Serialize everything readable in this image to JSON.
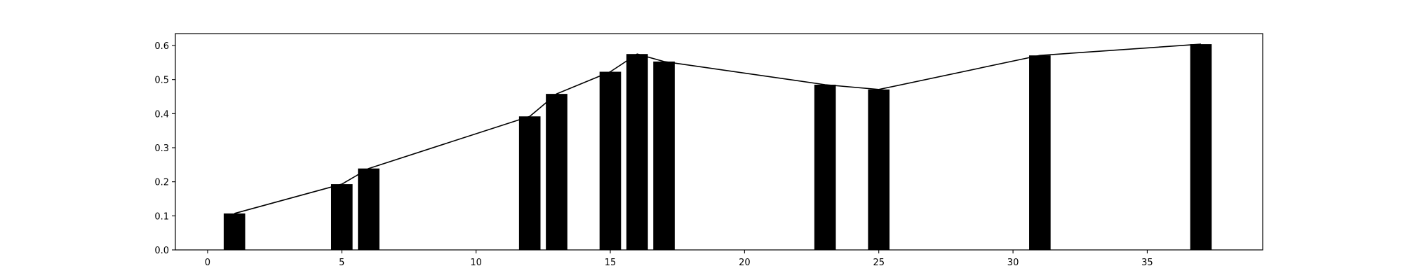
{
  "chart_data": {
    "type": "bar",
    "title": "",
    "xlabel": "",
    "ylabel": "",
    "x": [
      1,
      5,
      6,
      12,
      13,
      15,
      16,
      17,
      23,
      25,
      31,
      37
    ],
    "values": [
      0.107,
      0.193,
      0.239,
      0.392,
      0.458,
      0.523,
      0.575,
      0.553,
      0.485,
      0.471,
      0.571,
      0.604
    ],
    "line_values": [
      0.107,
      0.193,
      0.239,
      0.392,
      0.458,
      0.523,
      0.575,
      0.553,
      0.485,
      0.471,
      0.571,
      0.604
    ],
    "xlim": [
      -1.2,
      39.3
    ],
    "ylim": [
      0,
      0.635
    ],
    "xticks": [
      0,
      5,
      10,
      15,
      20,
      25,
      30,
      35
    ],
    "yticks": [
      0.0,
      0.1,
      0.2,
      0.3,
      0.4,
      0.5,
      0.6
    ],
    "xtick_labels": [
      "0",
      "5",
      "10",
      "15",
      "20",
      "25",
      "30",
      "35"
    ],
    "ytick_labels": [
      "0.0",
      "0.1",
      "0.2",
      "0.3",
      "0.4",
      "0.5",
      "0.6"
    ],
    "grid": false,
    "legend": "none",
    "bar_color": "#000000",
    "line_color": "#000000"
  }
}
